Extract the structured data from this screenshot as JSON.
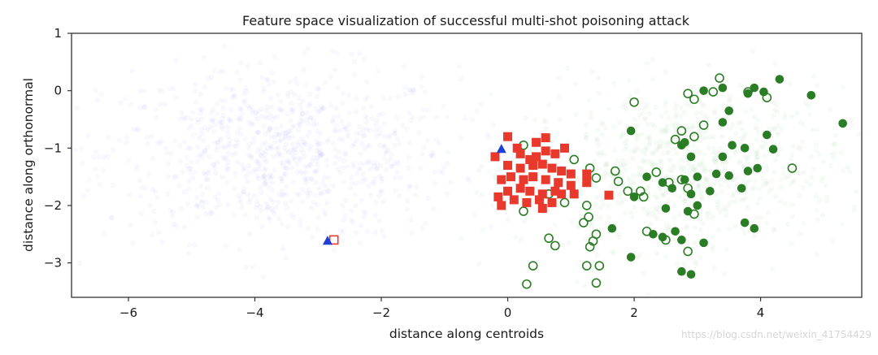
{
  "chart_data": {
    "type": "scatter",
    "title": "Feature space visualization of successful multi-shot poisoning attack",
    "xlabel": "distance along centroids",
    "ylabel": "distance along orthonormal",
    "xlim": [
      -6.9,
      5.6
    ],
    "ylim": [
      -3.6,
      1.0
    ],
    "xticks": [
      -6,
      -4,
      -2,
      0,
      2,
      4
    ],
    "yticks": [
      1,
      0,
      -1,
      -2,
      -3
    ],
    "grid": false,
    "legend": null,
    "colors": {
      "base_cloud": "#8a8ae6",
      "target_cloud": "#7fbf7f",
      "target_filled": "#2a7d24",
      "target_open": "#2a7d24",
      "poison_filled": "#e8392c",
      "poison_open": "#e8392c",
      "marker_triangle": "#1d3fd6"
    },
    "background_clouds": [
      {
        "cx": -3.6,
        "cy": -1.1,
        "sx": 1.4,
        "sy": 0.75,
        "n": 900,
        "color_key": "base_cloud"
      },
      {
        "cx": 2.8,
        "cy": -1.35,
        "sx": 1.25,
        "sy": 0.7,
        "n": 750,
        "color_key": "target_cloud"
      }
    ],
    "series": [
      {
        "marker": "circle-filled",
        "color_key": "target_filled",
        "points": [
          [
            3.1,
            -0.0
          ],
          [
            3.4,
            0.05
          ],
          [
            3.9,
            0.05
          ],
          [
            4.3,
            0.2
          ],
          [
            4.8,
            -0.08
          ],
          [
            3.8,
            -0.05
          ],
          [
            4.05,
            -0.02
          ],
          [
            3.5,
            -0.35
          ],
          [
            1.95,
            -0.7
          ],
          [
            2.8,
            -0.9
          ],
          [
            3.4,
            -0.55
          ],
          [
            4.1,
            -0.77
          ],
          [
            5.3,
            -0.57
          ],
          [
            4.2,
            -1.02
          ],
          [
            3.75,
            -1.0
          ],
          [
            2.75,
            -0.95
          ],
          [
            2.9,
            -1.15
          ],
          [
            3.4,
            -1.15
          ],
          [
            3.55,
            -0.95
          ],
          [
            2.2,
            -1.5
          ],
          [
            2.45,
            -1.6
          ],
          [
            2.8,
            -1.55
          ],
          [
            3.0,
            -1.5
          ],
          [
            3.3,
            -1.45
          ],
          [
            3.5,
            -1.48
          ],
          [
            3.8,
            -1.4
          ],
          [
            3.95,
            -1.35
          ],
          [
            2.0,
            -1.85
          ],
          [
            2.6,
            -1.7
          ],
          [
            2.9,
            -1.8
          ],
          [
            3.2,
            -1.75
          ],
          [
            3.7,
            -1.7
          ],
          [
            2.5,
            -2.05
          ],
          [
            2.85,
            -2.1
          ],
          [
            3.0,
            -2.0
          ],
          [
            3.75,
            -2.3
          ],
          [
            3.9,
            -2.4
          ],
          [
            3.1,
            -2.65
          ],
          [
            1.65,
            -2.4
          ],
          [
            2.3,
            -2.5
          ],
          [
            2.45,
            -2.55
          ],
          [
            2.75,
            -2.6
          ],
          [
            1.95,
            -2.9
          ],
          [
            2.75,
            -3.15
          ],
          [
            2.9,
            -3.2
          ],
          [
            2.65,
            -2.45
          ]
        ]
      },
      {
        "marker": "circle-open",
        "color_key": "target_open",
        "points": [
          [
            2.85,
            -0.05
          ],
          [
            3.35,
            0.22
          ],
          [
            3.25,
            -0.02
          ],
          [
            2.95,
            -0.15
          ],
          [
            3.8,
            -0.02
          ],
          [
            4.1,
            -0.12
          ],
          [
            2.0,
            -0.2
          ],
          [
            3.1,
            -0.6
          ],
          [
            2.65,
            -0.85
          ],
          [
            2.75,
            -0.7
          ],
          [
            2.95,
            -0.8
          ],
          [
            0.25,
            -0.95
          ],
          [
            1.05,
            -1.2
          ],
          [
            1.3,
            -1.35
          ],
          [
            1.4,
            -1.52
          ],
          [
            1.7,
            -1.4
          ],
          [
            1.75,
            -1.58
          ],
          [
            2.35,
            -1.42
          ],
          [
            2.75,
            -1.55
          ],
          [
            2.85,
            -1.7
          ],
          [
            4.5,
            -1.35
          ],
          [
            2.1,
            -1.75
          ],
          [
            2.15,
            -1.85
          ],
          [
            2.55,
            -1.6
          ],
          [
            1.9,
            -1.75
          ],
          [
            0.9,
            -1.95
          ],
          [
            0.65,
            -1.8
          ],
          [
            1.25,
            -2.0
          ],
          [
            1.28,
            -2.2
          ],
          [
            0.25,
            -2.1
          ],
          [
            2.95,
            -2.15
          ],
          [
            1.2,
            -2.3
          ],
          [
            1.4,
            -2.5
          ],
          [
            1.35,
            -2.62
          ],
          [
            1.3,
            -2.72
          ],
          [
            0.65,
            -2.57
          ],
          [
            0.75,
            -2.7
          ],
          [
            2.2,
            -2.45
          ],
          [
            2.5,
            -2.6
          ],
          [
            2.85,
            -2.8
          ],
          [
            0.4,
            -3.05
          ],
          [
            1.25,
            -3.05
          ],
          [
            1.45,
            -3.05
          ],
          [
            1.4,
            -3.35
          ],
          [
            0.3,
            -3.37
          ]
        ]
      },
      {
        "marker": "square-filled",
        "color_key": "poison_filled",
        "points": [
          [
            0.0,
            -0.8
          ],
          [
            0.15,
            -1.0
          ],
          [
            0.2,
            -1.1
          ],
          [
            0.35,
            -1.2
          ],
          [
            0.45,
            -0.9
          ],
          [
            0.6,
            -0.82
          ],
          [
            0.6,
            -1.05
          ],
          [
            0.75,
            -1.1
          ],
          [
            0.9,
            -1.0
          ],
          [
            -0.2,
            -1.15
          ],
          [
            0.0,
            -1.3
          ],
          [
            0.2,
            -1.35
          ],
          [
            0.4,
            -1.3
          ],
          [
            0.55,
            -1.28
          ],
          [
            0.7,
            -1.35
          ],
          [
            0.85,
            -1.4
          ],
          [
            1.0,
            -1.45
          ],
          [
            1.25,
            -1.45
          ],
          [
            -0.1,
            -1.55
          ],
          [
            0.05,
            -1.5
          ],
          [
            0.25,
            -1.55
          ],
          [
            0.4,
            -1.5
          ],
          [
            0.6,
            -1.55
          ],
          [
            0.8,
            -1.6
          ],
          [
            1.0,
            -1.65
          ],
          [
            1.25,
            -1.6
          ],
          [
            0.0,
            -1.75
          ],
          [
            0.2,
            -1.7
          ],
          [
            0.35,
            -1.75
          ],
          [
            0.55,
            -1.8
          ],
          [
            0.75,
            -1.75
          ],
          [
            1.05,
            -1.8
          ],
          [
            -0.15,
            -1.85
          ],
          [
            0.1,
            -1.9
          ],
          [
            0.3,
            -1.95
          ],
          [
            0.5,
            -1.9
          ],
          [
            0.7,
            -1.95
          ],
          [
            0.85,
            -1.8
          ],
          [
            -0.1,
            -2.0
          ],
          [
            0.55,
            -2.05
          ],
          [
            1.6,
            -1.82
          ],
          [
            0.45,
            -1.15
          ]
        ]
      },
      {
        "marker": "square-open",
        "color_key": "poison_open",
        "points": [
          [
            -2.75,
            -2.6
          ]
        ]
      },
      {
        "marker": "triangle-filled",
        "color_key": "marker_triangle",
        "points": [
          [
            -0.1,
            -1.02
          ],
          [
            -2.85,
            -2.62
          ]
        ]
      }
    ]
  },
  "watermark": "https://blog.csdn.net/weixin_41754429"
}
